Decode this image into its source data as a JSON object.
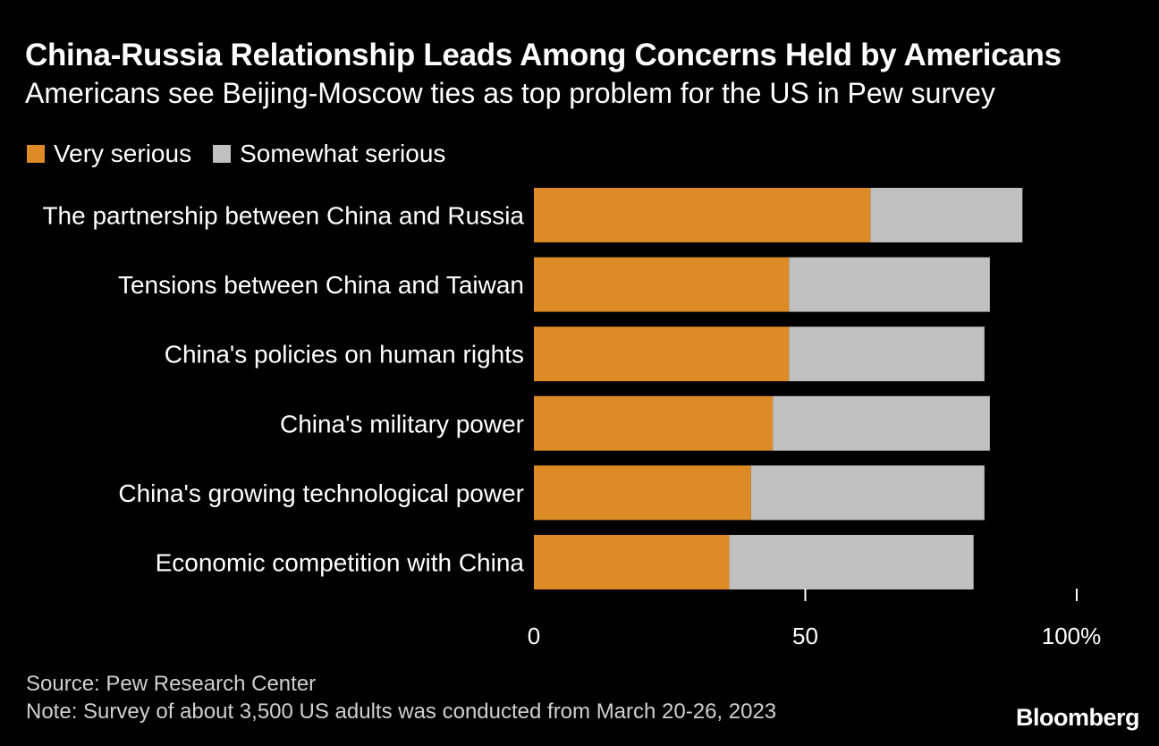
{
  "header": {
    "title": "China-Russia Relationship Leads Among Concerns Held by Americans",
    "subtitle": "Americans see Beijing-Moscow ties as top problem for the US in Pew survey"
  },
  "legend": {
    "very_serious": "Very serious",
    "somewhat_serious": "Somewhat serious"
  },
  "colors": {
    "very_serious": "#dd8b27",
    "somewhat_serious": "#c0c0c0",
    "background": "#000000",
    "text": "#ffffff"
  },
  "chart_data": {
    "type": "bar",
    "orientation": "horizontal",
    "stacked": true,
    "title": "China-Russia Relationship Leads Among Concerns Held by Americans",
    "subtitle": "Americans see Beijing-Moscow ties as top problem for the US in Pew survey",
    "categories": [
      "The partnership between China and Russia",
      "Tensions between China and Taiwan",
      "China's policies on human rights",
      "China's military power",
      "China's growing technological power",
      "Economic competition with China"
    ],
    "series": [
      {
        "name": "Very serious",
        "values": [
          62,
          47,
          47,
          44,
          40,
          36
        ]
      },
      {
        "name": "Somewhat serious",
        "values": [
          28,
          37,
          36,
          40,
          43,
          45
        ]
      }
    ],
    "xlim": [
      0,
      100
    ],
    "xticks": [
      0,
      50,
      100
    ],
    "xtick_labels": [
      "0",
      "50",
      "100%"
    ],
    "xlabel": "",
    "ylabel": "",
    "legend_position": "top-left",
    "grid": false
  },
  "footer": {
    "source": "Source: Pew Research Center",
    "note": "Note: Survey of about 3,500 US adults was conducted from March 20-26, 2023",
    "logo": "Bloomberg"
  }
}
